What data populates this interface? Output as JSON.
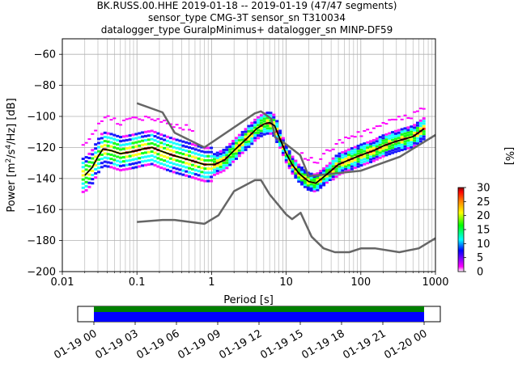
{
  "title_lines": [
    "BK.RUSS.00.HHE   2019-01-18 -- 2019-01-19  (47/47 segments)",
    "sensor_type CMG-3T sensor_sn T310034",
    "datalogger_type GuralpMinimus+ datalogger_sn MINP-DF59"
  ],
  "chart_data": {
    "type": "line",
    "title": "BK.RUSS.00.HHE   2019-01-18 -- 2019-01-19  (47/47 segments)",
    "xlabel": "Period [s]",
    "ylabel_parts": {
      "pre": "Power [m",
      "sup1": "2",
      "mid": "/s",
      "sup2": "4",
      "post": "/Hz] [dB]"
    },
    "xscale": "log",
    "xlim": [
      0.01,
      1000
    ],
    "ylim": [
      -200,
      -50
    ],
    "xticks": [
      {
        "value": 0.01,
        "label": "0.01"
      },
      {
        "value": 0.1,
        "label": "0.1"
      },
      {
        "value": 1,
        "label": "1"
      },
      {
        "value": 10,
        "label": "10"
      },
      {
        "value": 100,
        "label": "100"
      },
      {
        "value": 1000,
        "label": "1000"
      }
    ],
    "yticks": [
      -60,
      -80,
      -100,
      -120,
      -140,
      -160,
      -180,
      -200
    ],
    "grid": true,
    "series": [
      {
        "name": "",
        "color": "#666666",
        "x": [
          0.1,
          0.22,
          0.32,
          0.8,
          3.8,
          4.6,
          6.3,
          7.1,
          10,
          15.4,
          20,
          100,
          333,
          1000
        ],
        "y": [
          -91.5,
          -97.4,
          -110.5,
          -120,
          -98,
          -96.7,
          -101.5,
          -113.4,
          -118,
          -125,
          -138.5,
          -135,
          -126,
          -112
        ]
      },
      {
        "name": "",
        "color": "#666666",
        "x": [
          0.1,
          0.22,
          0.32,
          0.8,
          1.24,
          2,
          3.8,
          4.6,
          6,
          10,
          12,
          15.6,
          21.9,
          31.6,
          45,
          70,
          101,
          154,
          328,
          600,
          1000
        ],
        "y": [
          -168,
          -166.7,
          -166.7,
          -169.2,
          -163.7,
          -148.2,
          -141.1,
          -141.1,
          -150.2,
          -163.2,
          -166.2,
          -162.1,
          -177.5,
          -185,
          -187.5,
          -187.5,
          -185,
          -185,
          -187.5,
          -185,
          -178.5
        ]
      },
      {
        "name": "",
        "color": "#000000",
        "x": [
          0.02,
          0.025,
          0.03,
          0.035,
          0.045,
          0.06,
          0.08,
          0.1,
          0.12,
          0.16,
          0.2,
          0.3,
          0.5,
          0.8,
          1.1,
          1.5,
          2,
          3,
          4,
          5,
          6,
          7,
          8,
          10,
          12,
          15,
          20,
          25,
          30,
          40,
          50,
          70,
          100,
          150,
          200,
          300,
          500,
          700
        ],
        "y": [
          -138,
          -133,
          -126,
          -121,
          -122,
          -124,
          -123,
          -122,
          -121,
          -120,
          -122,
          -125,
          -128,
          -131,
          -131,
          -128,
          -122,
          -114,
          -108,
          -105,
          -104,
          -106,
          -113,
          -124,
          -131,
          -137,
          -142,
          -143,
          -140,
          -135,
          -131,
          -128,
          -125,
          -122,
          -119,
          -116,
          -113,
          -108
        ]
      }
    ],
    "colorbar": {
      "label": "[%]",
      "min": 0,
      "max": 30,
      "ticks": [
        0,
        5,
        10,
        15,
        20,
        25,
        30
      ],
      "colors": [
        "#ffffff",
        "#ff00ff",
        "#0000ff",
        "#00ffff",
        "#00ff00",
        "#ffff00",
        "#ff8000",
        "#ff0000",
        "#800000"
      ]
    },
    "timeline": {
      "start": "2019-01-19 00",
      "end": "2019-01-20 00",
      "tick_labels": [
        "01-19 00",
        "01-19 03",
        "01-19 06",
        "01-19 09",
        "01-19 12",
        "01-19 15",
        "01-19 18",
        "01-19 21",
        "01-20 00"
      ],
      "coverage_color": "#008000",
      "data_color": "#0000ff"
    }
  }
}
